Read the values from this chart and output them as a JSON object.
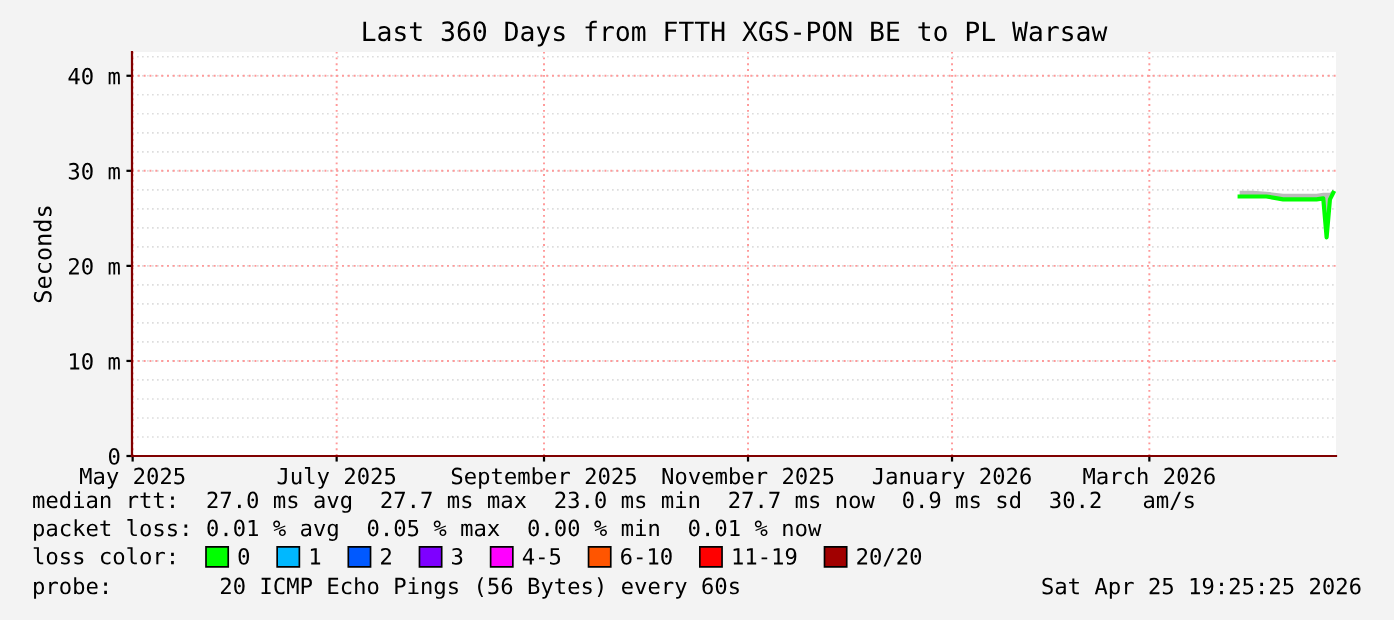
{
  "chart_data": {
    "type": "line",
    "title": "Last 360 Days from FTTH XGS-PON BE to PL Warsaw",
    "ylabel": "Seconds",
    "x": [
      "2026-03-28",
      "2026-04-01",
      "2026-04-05",
      "2026-04-10",
      "2026-04-15",
      "2026-04-20",
      "2026-04-22",
      "2026-04-23",
      "2026-04-24",
      "2026-04-25"
    ],
    "series": [
      {
        "name": "0",
        "color": "#00ff00",
        "values": [
          27.3,
          27.3,
          27.3,
          27.0,
          27.0,
          27.0,
          27.1,
          23.0,
          27.0,
          27.7
        ],
        "lower": [
          27.2,
          27.2,
          27.2,
          26.9,
          26.9,
          26.9,
          27.0,
          22.9,
          26.9,
          27.5
        ],
        "upper": [
          27.9,
          27.9,
          27.8,
          27.6,
          27.6,
          27.6,
          27.7,
          27.7,
          27.7,
          28.0
        ]
      },
      {
        "name": "1",
        "color": "#00b8ff",
        "values": [
          null,
          null,
          null,
          null,
          null,
          null,
          null,
          null,
          null,
          null
        ]
      },
      {
        "name": "2",
        "color": "#0059ff",
        "values": [
          null,
          null,
          null,
          null,
          null,
          null,
          null,
          null,
          null,
          null
        ]
      },
      {
        "name": "3",
        "color": "#7e00ff",
        "values": [
          null,
          null,
          null,
          null,
          null,
          null,
          null,
          null,
          null,
          null
        ]
      },
      {
        "name": "4-5",
        "color": "#ff00ff",
        "values": [
          null,
          null,
          null,
          null,
          null,
          null,
          null,
          null,
          null,
          null
        ]
      },
      {
        "name": "6-10",
        "color": "#ff5500",
        "values": [
          null,
          null,
          null,
          null,
          null,
          null,
          null,
          null,
          null,
          null
        ]
      },
      {
        "name": "11-19",
        "color": "#ff0000",
        "values": [
          null,
          null,
          null,
          null,
          null,
          null,
          null,
          null,
          null,
          null
        ]
      },
      {
        "name": "20/20",
        "color": "#a10000",
        "values": [
          null,
          null,
          null,
          null,
          null,
          null,
          null,
          null,
          null,
          null
        ]
      }
    ],
    "xlim": [
      "2025-04-30T19:25",
      "2026-04-25T19:25"
    ],
    "xticks": [
      {
        "value": "2025-05-01",
        "label": "May 2025"
      },
      {
        "value": "2025-07-01",
        "label": "July 2025"
      },
      {
        "value": "2025-09-01",
        "label": "September 2025"
      },
      {
        "value": "2025-11-01",
        "label": "November 2025"
      },
      {
        "value": "2026-01-01",
        "label": "January 2026"
      },
      {
        "value": "2026-03-01",
        "label": "March 2026"
      }
    ],
    "ylim": [
      0,
      42.5
    ],
    "yticks": [
      0,
      {
        "value": 10,
        "label": "10 m"
      },
      {
        "value": 20,
        "label": "20 m"
      },
      {
        "value": 30,
        "label": "30 m"
      },
      {
        "value": 40,
        "label": "40 m"
      }
    ],
    "grid": true,
    "legend": "bottom",
    "annotations": [
      "median rtt:  27.0 ms avg  27.7 ms max  23.0 ms min  27.7 ms now  0.9 ms sd  30.2   am/s",
      "packet loss: 0.01 % avg  0.05 % max  0.00 % min  0.01 % now",
      "loss color:",
      "probe:        20 ICMP Echo Pings (56 Bytes) every 60s",
      "Sat Apr 25 19:25:25 2026"
    ]
  }
}
